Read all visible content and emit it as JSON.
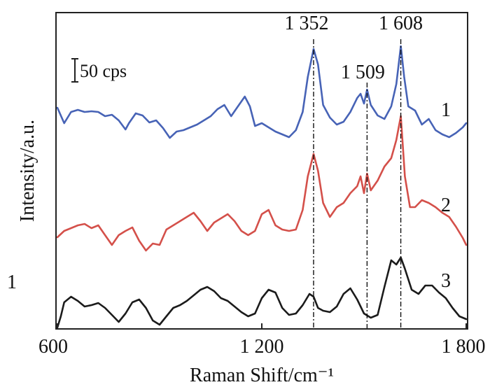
{
  "chart_data": {
    "type": "line",
    "xlabel": "Raman Shift/cm⁻¹",
    "ylabel": "Intensity/a.u.",
    "xlim": [
      600,
      1800
    ],
    "x_ticks": [
      {
        "value": 600,
        "label": "600"
      },
      {
        "value": 1200,
        "label": "1 200"
      },
      {
        "value": 1800,
        "label": "1 800"
      }
    ],
    "y_ticks": [],
    "stray_label": "1",
    "scale_bar": {
      "label": "50 cps",
      "cps": 50
    },
    "peak_labels": [
      {
        "x": 1352,
        "label": "1 352"
      },
      {
        "x": 1509,
        "label": "1 509"
      },
      {
        "x": 1608,
        "label": "1 608"
      }
    ],
    "series": [
      {
        "name": "1",
        "color": "#4763b6",
        "points": [
          [
            600,
            154
          ],
          [
            620,
            176
          ],
          [
            640,
            160
          ],
          [
            660,
            157
          ],
          [
            680,
            160
          ],
          [
            700,
            159
          ],
          [
            720,
            160
          ],
          [
            740,
            166
          ],
          [
            760,
            164
          ],
          [
            780,
            172
          ],
          [
            800,
            185
          ],
          [
            810,
            176
          ],
          [
            830,
            162
          ],
          [
            850,
            165
          ],
          [
            870,
            175
          ],
          [
            890,
            172
          ],
          [
            910,
            183
          ],
          [
            930,
            197
          ],
          [
            950,
            188
          ],
          [
            970,
            186
          ],
          [
            990,
            182
          ],
          [
            1010,
            178
          ],
          [
            1030,
            172
          ],
          [
            1050,
            166
          ],
          [
            1070,
            156
          ],
          [
            1090,
            150
          ],
          [
            1110,
            166
          ],
          [
            1130,
            152
          ],
          [
            1150,
            138
          ],
          [
            1165,
            152
          ],
          [
            1180,
            180
          ],
          [
            1200,
            176
          ],
          [
            1220,
            182
          ],
          [
            1240,
            188
          ],
          [
            1260,
            192
          ],
          [
            1280,
            196
          ],
          [
            1300,
            186
          ],
          [
            1320,
            160
          ],
          [
            1335,
            110
          ],
          [
            1352,
            70
          ],
          [
            1365,
            92
          ],
          [
            1380,
            150
          ],
          [
            1400,
            168
          ],
          [
            1420,
            178
          ],
          [
            1440,
            174
          ],
          [
            1460,
            160
          ],
          [
            1480,
            140
          ],
          [
            1490,
            134
          ],
          [
            1500,
            148
          ],
          [
            1509,
            128
          ],
          [
            1520,
            150
          ],
          [
            1540,
            165
          ],
          [
            1560,
            170
          ],
          [
            1580,
            152
          ],
          [
            1595,
            120
          ],
          [
            1608,
            66
          ],
          [
            1618,
            110
          ],
          [
            1630,
            152
          ],
          [
            1650,
            158
          ],
          [
            1670,
            178
          ],
          [
            1690,
            170
          ],
          [
            1710,
            186
          ],
          [
            1730,
            192
          ],
          [
            1750,
            196
          ],
          [
            1770,
            190
          ],
          [
            1790,
            182
          ],
          [
            1800,
            176
          ]
        ]
      },
      {
        "name": "2",
        "color": "#d4504a",
        "points": [
          [
            600,
            339
          ],
          [
            620,
            330
          ],
          [
            640,
            326
          ],
          [
            660,
            322
          ],
          [
            680,
            320
          ],
          [
            700,
            326
          ],
          [
            720,
            322
          ],
          [
            740,
            336
          ],
          [
            760,
            350
          ],
          [
            780,
            336
          ],
          [
            800,
            330
          ],
          [
            820,
            325
          ],
          [
            840,
            344
          ],
          [
            860,
            358
          ],
          [
            880,
            348
          ],
          [
            900,
            350
          ],
          [
            920,
            328
          ],
          [
            940,
            322
          ],
          [
            960,
            316
          ],
          [
            980,
            310
          ],
          [
            1000,
            304
          ],
          [
            1020,
            316
          ],
          [
            1040,
            330
          ],
          [
            1060,
            318
          ],
          [
            1080,
            312
          ],
          [
            1100,
            306
          ],
          [
            1120,
            316
          ],
          [
            1140,
            330
          ],
          [
            1160,
            336
          ],
          [
            1180,
            330
          ],
          [
            1200,
            306
          ],
          [
            1220,
            300
          ],
          [
            1240,
            322
          ],
          [
            1260,
            328
          ],
          [
            1280,
            330
          ],
          [
            1300,
            328
          ],
          [
            1320,
            300
          ],
          [
            1335,
            252
          ],
          [
            1352,
            220
          ],
          [
            1365,
            244
          ],
          [
            1380,
            290
          ],
          [
            1400,
            310
          ],
          [
            1420,
            296
          ],
          [
            1440,
            290
          ],
          [
            1460,
            276
          ],
          [
            1480,
            266
          ],
          [
            1490,
            252
          ],
          [
            1500,
            276
          ],
          [
            1509,
            248
          ],
          [
            1520,
            272
          ],
          [
            1540,
            258
          ],
          [
            1560,
            238
          ],
          [
            1580,
            226
          ],
          [
            1595,
            200
          ],
          [
            1608,
            166
          ],
          [
            1620,
            252
          ],
          [
            1635,
            296
          ],
          [
            1650,
            296
          ],
          [
            1670,
            286
          ],
          [
            1690,
            290
          ],
          [
            1710,
            296
          ],
          [
            1730,
            304
          ],
          [
            1750,
            310
          ],
          [
            1770,
            324
          ],
          [
            1790,
            340
          ],
          [
            1800,
            350
          ]
        ]
      },
      {
        "name": "3",
        "color": "#1b1b1b",
        "points": [
          [
            600,
            468
          ],
          [
            610,
            452
          ],
          [
            620,
            432
          ],
          [
            640,
            424
          ],
          [
            660,
            430
          ],
          [
            680,
            438
          ],
          [
            700,
            436
          ],
          [
            720,
            433
          ],
          [
            740,
            440
          ],
          [
            760,
            450
          ],
          [
            780,
            460
          ],
          [
            800,
            448
          ],
          [
            820,
            432
          ],
          [
            840,
            428
          ],
          [
            860,
            440
          ],
          [
            880,
            458
          ],
          [
            900,
            464
          ],
          [
            920,
            452
          ],
          [
            940,
            440
          ],
          [
            960,
            436
          ],
          [
            980,
            430
          ],
          [
            1000,
            422
          ],
          [
            1020,
            414
          ],
          [
            1040,
            410
          ],
          [
            1060,
            416
          ],
          [
            1080,
            426
          ],
          [
            1100,
            430
          ],
          [
            1120,
            438
          ],
          [
            1140,
            446
          ],
          [
            1160,
            452
          ],
          [
            1180,
            448
          ],
          [
            1200,
            426
          ],
          [
            1220,
            414
          ],
          [
            1240,
            418
          ],
          [
            1260,
            440
          ],
          [
            1280,
            450
          ],
          [
            1300,
            448
          ],
          [
            1320,
            436
          ],
          [
            1340,
            420
          ],
          [
            1352,
            424
          ],
          [
            1365,
            440
          ],
          [
            1380,
            444
          ],
          [
            1400,
            446
          ],
          [
            1420,
            438
          ],
          [
            1440,
            420
          ],
          [
            1460,
            412
          ],
          [
            1480,
            428
          ],
          [
            1500,
            448
          ],
          [
            1520,
            454
          ],
          [
            1540,
            450
          ],
          [
            1560,
            410
          ],
          [
            1580,
            372
          ],
          [
            1595,
            378
          ],
          [
            1608,
            368
          ],
          [
            1620,
            384
          ],
          [
            1640,
            414
          ],
          [
            1660,
            420
          ],
          [
            1680,
            408
          ],
          [
            1700,
            408
          ],
          [
            1720,
            418
          ],
          [
            1740,
            426
          ],
          [
            1760,
            440
          ],
          [
            1780,
            452
          ],
          [
            1800,
            456
          ]
        ]
      }
    ]
  }
}
